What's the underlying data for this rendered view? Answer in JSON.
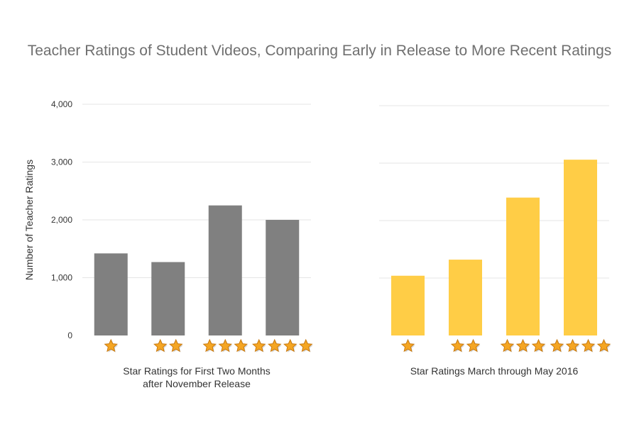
{
  "title": "Teacher Ratings of Student Videos, Comparing Early in Release to More Recent Ratings",
  "chart_data": [
    {
      "type": "bar",
      "categories": [
        "1 star",
        "2 stars",
        "3 stars",
        "4 stars"
      ],
      "star_counts": [
        1,
        2,
        3,
        4
      ],
      "values": [
        1420,
        1270,
        2250,
        2000
      ],
      "color": "#808080",
      "title": "",
      "xlabel_lines": [
        "Star Ratings for First Two Months",
        "after November Release"
      ],
      "ylabel": "Number of Teacher Ratings",
      "ylim": [
        0,
        4000
      ],
      "yticks": [
        0,
        1000,
        2000,
        3000,
        4000
      ],
      "ytick_labels": [
        "0",
        "1,000",
        "2,000",
        "3,000",
        "4,000"
      ],
      "grid": true
    },
    {
      "type": "bar",
      "categories": [
        "1 star",
        "2 stars",
        "3 stars",
        "4 stars"
      ],
      "star_counts": [
        1,
        2,
        3,
        4
      ],
      "values": [
        1040,
        1320,
        2400,
        3060
      ],
      "color": "#ffcd46",
      "title": "",
      "xlabel_lines": [
        "Star Ratings March through May 2016"
      ],
      "ylabel": "",
      "ylim": [
        0,
        4000
      ],
      "yticks": [
        0,
        1000,
        2000,
        3000,
        4000
      ],
      "ytick_labels": [],
      "grid": true
    }
  ],
  "star_fill": "#f5a623",
  "star_stroke": "#c97a10"
}
